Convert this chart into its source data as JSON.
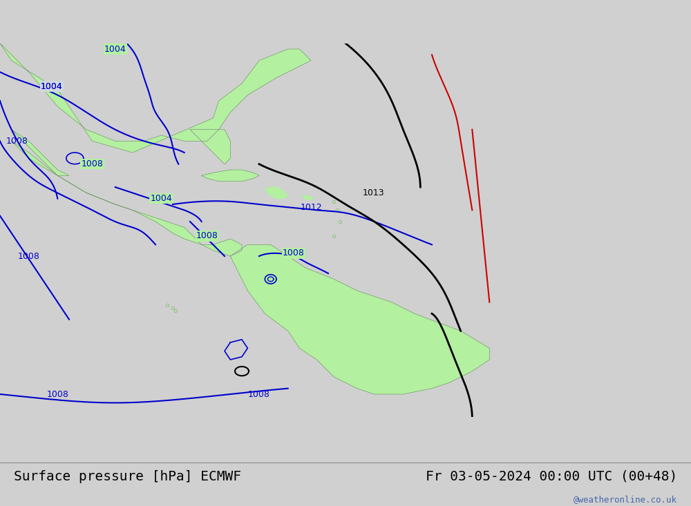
{
  "title_left": "Surface pressure [hPa] ECMWF",
  "title_right": "Fr 03-05-2024 00:00 UTC (00+48)",
  "watermark": "@weatheronline.co.uk",
  "bg_color": "#c8c8c8",
  "land_color": "#b3f0a0",
  "sea_color": "#d0d8e0",
  "contour_colors": {
    "blue": "#0000cc",
    "black": "#000000",
    "red": "#cc0000"
  },
  "title_fontsize": 14,
  "label_fontsize": 10,
  "watermark_color": "#4466aa"
}
